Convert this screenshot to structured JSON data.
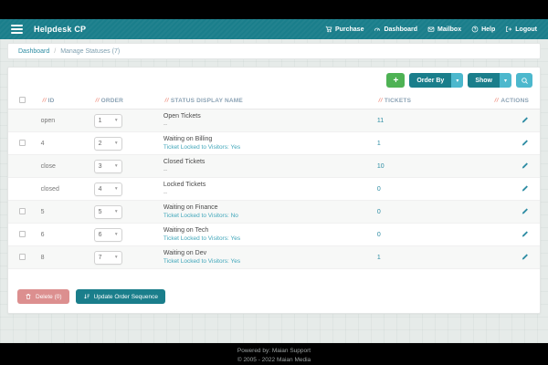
{
  "app": {
    "brand": "Helpdesk CP"
  },
  "nav": {
    "items": [
      {
        "icon": "purchase-icon",
        "label": "Purchase"
      },
      {
        "icon": "dashboard-icon",
        "label": "Dashboard"
      },
      {
        "icon": "mailbox-icon",
        "label": "Mailbox"
      },
      {
        "icon": "help-icon",
        "label": "Help"
      },
      {
        "icon": "logout-icon",
        "label": "Logout"
      }
    ]
  },
  "breadcrumb": {
    "home": "Dashboard",
    "separator": "/",
    "current": "Manage Statuses (7)"
  },
  "toolbar": {
    "add_label": "+",
    "order_by_label": "Order By",
    "show_label": "Show",
    "caret": "▾"
  },
  "table": {
    "headers": {
      "id": "ID",
      "order": "ORDER",
      "name": "STATUS DISPLAY NAME",
      "tickets": "TICKETS",
      "actions": "ACTIONS"
    },
    "rows": [
      {
        "selectable": false,
        "id": "open",
        "order": "1",
        "name": "Open Tickets",
        "sub": "--",
        "tickets": "11"
      },
      {
        "selectable": true,
        "id": "4",
        "order": "2",
        "name": "Waiting on Billing",
        "sub": "Ticket Locked to Visitors: Yes",
        "tickets": "1"
      },
      {
        "selectable": false,
        "id": "close",
        "order": "3",
        "name": "Closed Tickets",
        "sub": "--",
        "tickets": "10"
      },
      {
        "selectable": false,
        "id": "closed",
        "order": "4",
        "name": "Locked Tickets",
        "sub": "--",
        "tickets": "0"
      },
      {
        "selectable": true,
        "id": "5",
        "order": "5",
        "name": "Waiting on Finance",
        "sub": "Ticket Locked to Visitors: No",
        "tickets": "0"
      },
      {
        "selectable": true,
        "id": "6",
        "order": "6",
        "name": "Waiting on Tech",
        "sub": "Ticket Locked to Visitors: Yes",
        "tickets": "0"
      },
      {
        "selectable": true,
        "id": "8",
        "order": "7",
        "name": "Waiting on Dev",
        "sub": "Ticket Locked to Visitors: Yes",
        "tickets": "1"
      }
    ]
  },
  "actions": {
    "delete_label": "Delete (0)",
    "update_label": "Update Order Sequence"
  },
  "footer": {
    "line1": "Powered by: Maian Support",
    "line2": "© 2005 - 2022 Maian Media"
  },
  "colors": {
    "teal": "#1a7e8b",
    "cyan": "#4cb8cd",
    "green": "#4eb254",
    "link": "#2d8ca3",
    "sort_salmon": "#f09384",
    "delete_pink": "#dc8f8f"
  }
}
